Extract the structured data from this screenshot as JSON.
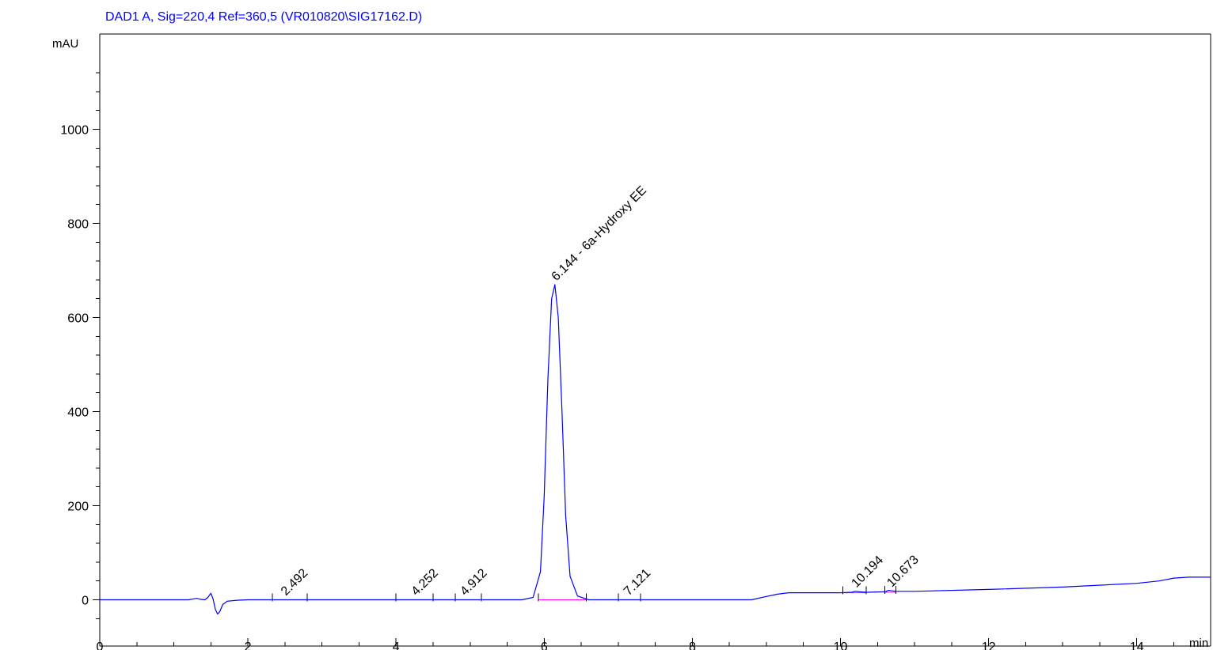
{
  "chart_data": {
    "type": "line",
    "title": "DAD1 A, Sig=220,4 Ref=360,5 (VR010820\\SIG17162.D)",
    "xlabel": "min",
    "ylabel": "mAU",
    "xlim": [
      0,
      15
    ],
    "ylim": [
      -50,
      1150
    ],
    "x_ticks": [
      "0",
      "2",
      "4",
      "6",
      "8",
      "10",
      "12",
      "14"
    ],
    "y_ticks": [
      "0",
      "200",
      "400",
      "600",
      "800",
      "1000"
    ],
    "grid": false,
    "colors": {
      "signal": "#0000ff",
      "baseline": "#ff00ff",
      "title": "#0000ff",
      "axes": "#000000"
    },
    "series": [
      {
        "x": [
          0,
          1.2,
          1.27,
          1.31,
          1.36,
          1.42,
          1.46,
          1.5,
          1.53,
          1.56,
          1.59,
          1.62,
          1.66,
          1.72,
          1.85,
          2.0,
          5.7,
          5.85,
          5.95,
          6.0,
          6.05,
          6.1,
          6.144,
          6.19,
          6.24,
          6.29,
          6.35,
          6.45,
          6.6,
          8.8,
          9.0,
          9.15,
          9.3,
          10.0,
          10.15,
          10.2,
          10.26,
          10.35,
          10.6,
          10.65,
          10.7,
          10.75,
          11.0,
          12.0,
          13.0,
          14.0,
          14.3,
          14.5,
          14.7,
          15.0
        ],
        "y": [
          0,
          0,
          2,
          3,
          1,
          0,
          5,
          14,
          2,
          -20,
          -30,
          -25,
          -10,
          -3,
          -1,
          0,
          0,
          5,
          60,
          220,
          470,
          640,
          670,
          600,
          400,
          180,
          50,
          8,
          0,
          0,
          7,
          12,
          15,
          15,
          16,
          18,
          17,
          16,
          17,
          20,
          19,
          18,
          18,
          22,
          27,
          35,
          40,
          46,
          48,
          48
        ]
      }
    ],
    "peaks": [
      {
        "label": "2.492",
        "x": 2.492,
        "y": 1,
        "baseline": [
          2.33,
          2.8
        ]
      },
      {
        "label": "4.252",
        "x": 4.252,
        "y": 1,
        "baseline": [
          4.0,
          4.5
        ]
      },
      {
        "label": "4.912",
        "x": 4.912,
        "y": 1,
        "baseline": [
          4.8,
          5.15
        ]
      },
      {
        "label": "6.144 -  6a-Hydroxy EE",
        "x": 6.144,
        "y": 670,
        "baseline": [
          5.92,
          6.57
        ]
      },
      {
        "label": "7.121",
        "x": 7.121,
        "y": 1,
        "baseline": [
          7.0,
          7.3
        ]
      },
      {
        "label": "10.194",
        "x": 10.194,
        "y": 18,
        "baseline": [
          10.03,
          10.35
        ]
      },
      {
        "label": "10.673",
        "x": 10.673,
        "y": 19,
        "baseline": [
          10.6,
          10.75
        ]
      }
    ]
  }
}
